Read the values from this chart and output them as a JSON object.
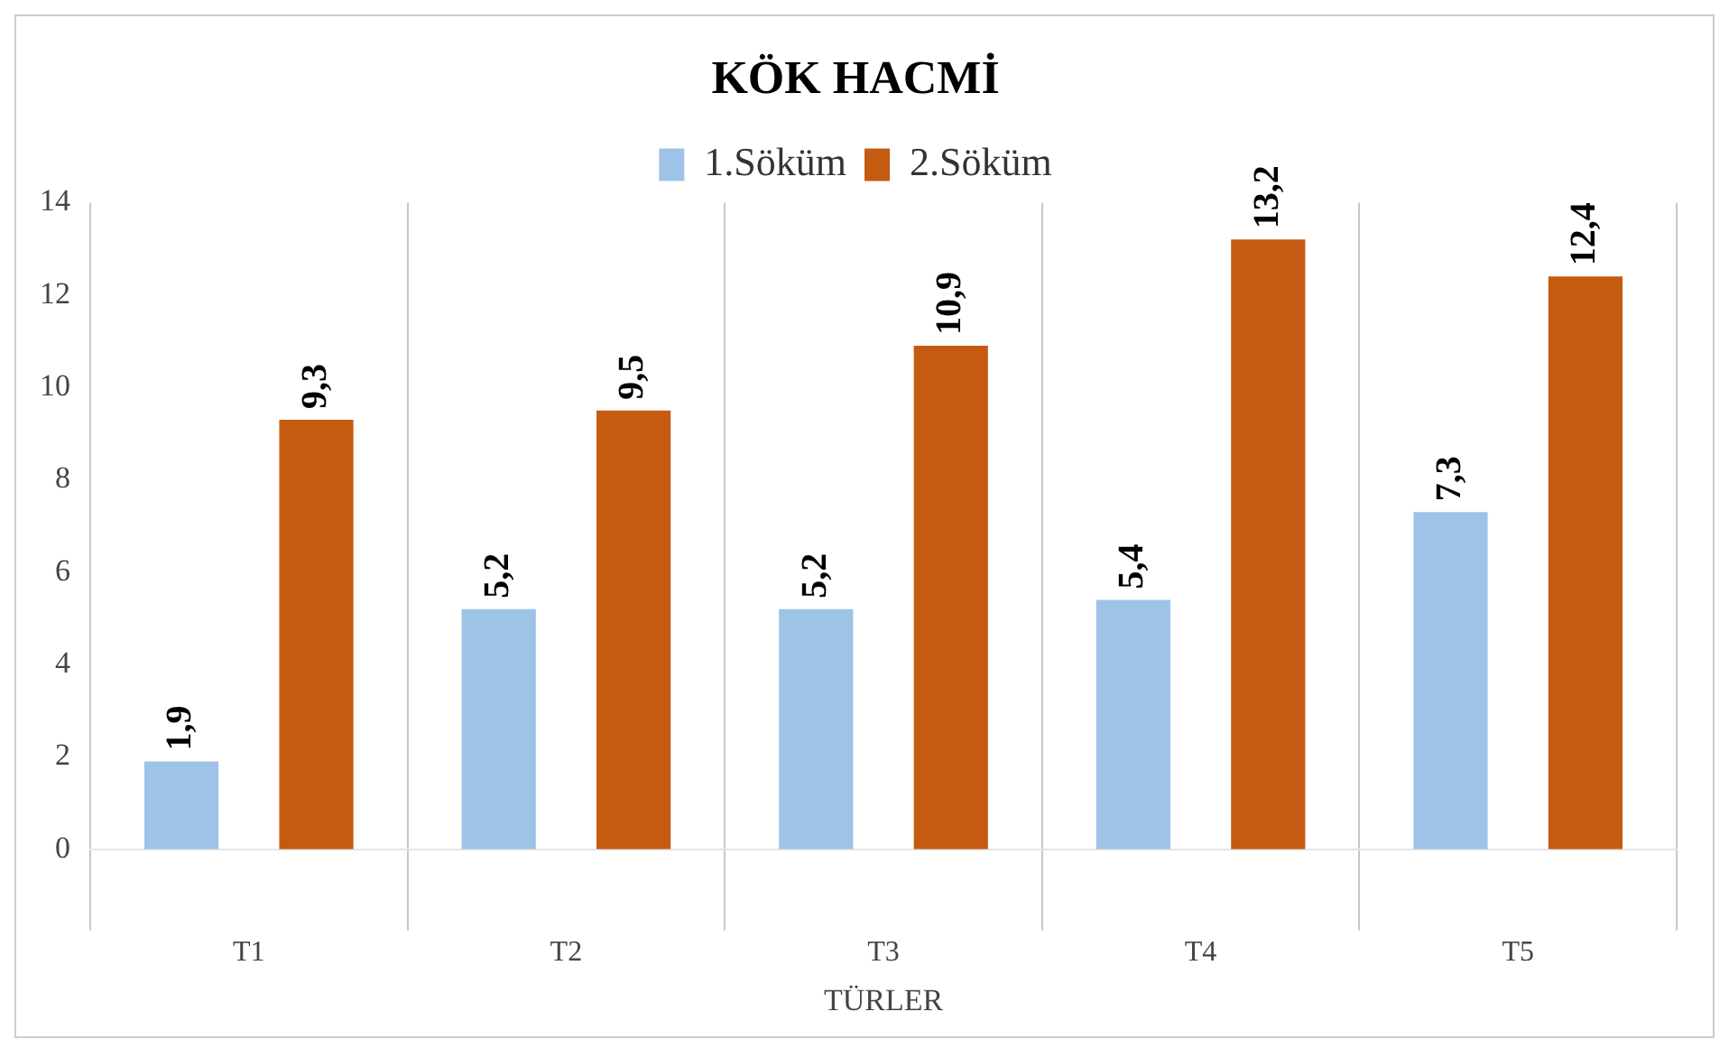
{
  "chart_data": {
    "type": "bar",
    "title": "KÖK HACMİ",
    "xlabel": "TÜRLER",
    "categories": [
      "T1",
      "T2",
      "T3",
      "T4",
      "T5"
    ],
    "series": [
      {
        "name": "1.Söküm",
        "color": "#9dc3e6",
        "values": [
          1.9,
          5.2,
          5.2,
          5.4,
          7.3
        ],
        "value_labels": [
          "1,9",
          "5,2",
          "5,2",
          "5,4",
          "7,3"
        ]
      },
      {
        "name": "2.Söküm",
        "color": "#c55a11",
        "values": [
          9.3,
          9.5,
          10.9,
          13.2,
          12.4
        ],
        "value_labels": [
          "9,3",
          "9,5",
          "10,9",
          "13,2",
          "12,4"
        ]
      }
    ],
    "ylim": [
      0,
      14
    ],
    "yticks": [
      0,
      2,
      4,
      6,
      8,
      10,
      12,
      14
    ],
    "grid": "x",
    "legend": "top"
  }
}
